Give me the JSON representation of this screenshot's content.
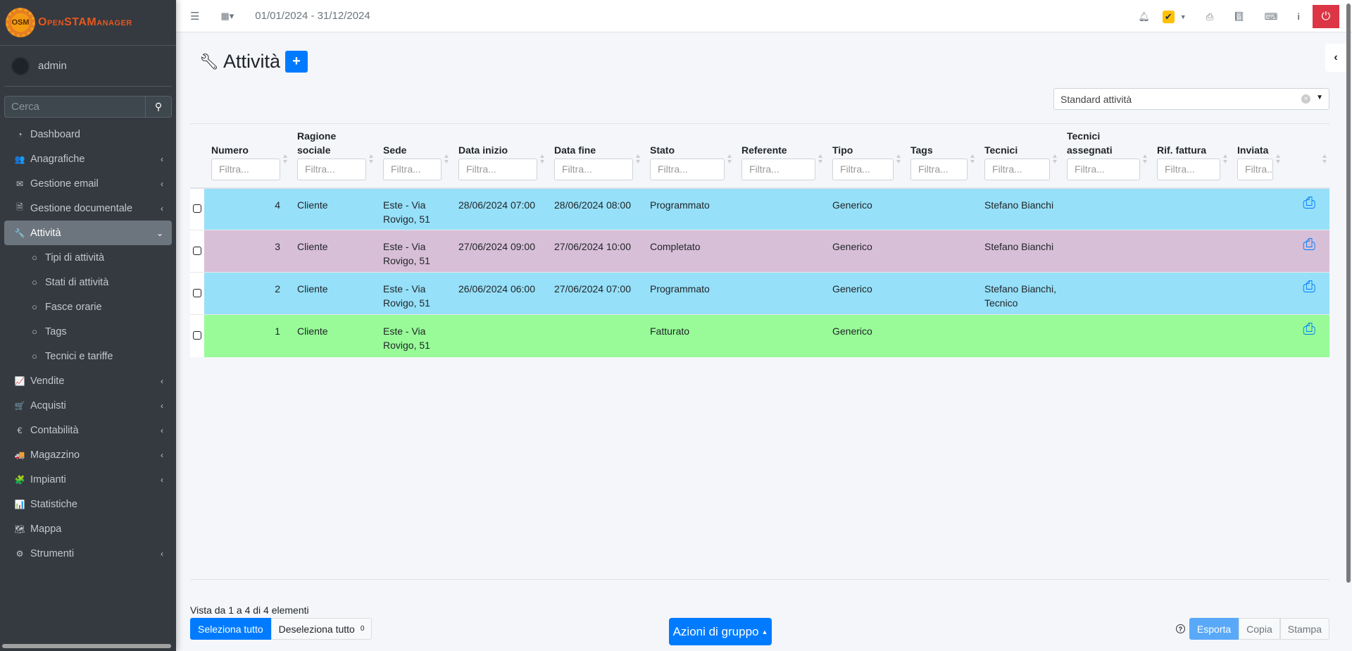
{
  "brand": {
    "logo_text": "OpenSTAManager",
    "logo_badge": "OSM"
  },
  "user": {
    "name": "admin"
  },
  "search": {
    "placeholder": "Cerca"
  },
  "menu": [
    {
      "label": "Dashboard",
      "icon": "dashboard-icon",
      "glyph": "◔",
      "chev": ""
    },
    {
      "label": "Anagrafiche",
      "icon": "users-icon",
      "glyph": "👥",
      "chev": "‹"
    },
    {
      "label": "Gestione email",
      "icon": "envelope-icon",
      "glyph": "✉",
      "chev": "‹"
    },
    {
      "label": "Gestione documentale",
      "icon": "file-icon",
      "glyph": "🗎",
      "chev": "‹"
    },
    {
      "label": "Attività",
      "icon": "wrench-icon",
      "glyph": "🔧",
      "chev": "⌄",
      "active": true
    },
    {
      "label": "Tipi di attività",
      "icon": "circle-icon",
      "glyph": "○",
      "sub": true
    },
    {
      "label": "Stati di attività",
      "icon": "circle-icon",
      "glyph": "○",
      "sub": true
    },
    {
      "label": "Fasce orarie",
      "icon": "circle-icon",
      "glyph": "○",
      "sub": true
    },
    {
      "label": "Tags",
      "icon": "circle-icon",
      "glyph": "○",
      "sub": true
    },
    {
      "label": "Tecnici e tariffe",
      "icon": "circle-icon",
      "glyph": "○",
      "sub": true
    },
    {
      "label": "Vendite",
      "icon": "chart-line-icon",
      "glyph": "📈",
      "chev": "‹"
    },
    {
      "label": "Acquisti",
      "icon": "cart-icon",
      "glyph": "🛒",
      "chev": "‹"
    },
    {
      "label": "Contabilità",
      "icon": "euro-icon",
      "glyph": "€",
      "chev": "‹"
    },
    {
      "label": "Magazzino",
      "icon": "truck-icon",
      "glyph": "🚚",
      "chev": "‹"
    },
    {
      "label": "Impianti",
      "icon": "puzzle-icon",
      "glyph": "🧩",
      "chev": "‹"
    },
    {
      "label": "Statistiche",
      "icon": "bar-chart-icon",
      "glyph": "📊",
      "chev": ""
    },
    {
      "label": "Mappa",
      "icon": "map-icon",
      "glyph": "🗺",
      "chev": ""
    },
    {
      "label": "Strumenti",
      "icon": "cog-icon",
      "glyph": "⚙",
      "chev": "‹"
    }
  ],
  "topbar": {
    "date_range": "01/01/2024 - 31/12/2024"
  },
  "page": {
    "title": "Attività",
    "add_label": "+"
  },
  "view_select": {
    "value": "Standard attività"
  },
  "table": {
    "filter_placeholder": "Filtra...",
    "columns": [
      "Numero",
      "Ragione sociale",
      "Sede",
      "Data inizio",
      "Data fine",
      "Stato",
      "Referente",
      "Tipo",
      "Tags",
      "Tecnici",
      "Tecnici assegnati",
      "Rif. fattura",
      "Inviata",
      ""
    ],
    "rows": [
      {
        "color": "#96e0f9",
        "cells": [
          "4",
          "Cliente",
          "Este - Via Rovigo, 51",
          "28/06/2024 07:00",
          "28/06/2024 08:00",
          "Programmato",
          "",
          "Generico",
          "",
          "Stefano Bianchi",
          "",
          "",
          ""
        ]
      },
      {
        "color": "#d8bfd8",
        "cells": [
          "3",
          "Cliente",
          "Este - Via Rovigo, 51",
          "27/06/2024 09:00",
          "27/06/2024 10:00",
          "Completato",
          "",
          "Generico",
          "",
          "Stefano Bianchi",
          "",
          "",
          ""
        ]
      },
      {
        "color": "#96e0f9",
        "cells": [
          "2",
          "Cliente",
          "Este - Via Rovigo, 51",
          "26/06/2024 06:00",
          "27/06/2024 07:00",
          "Programmato",
          "",
          "Generico",
          "",
          "Stefano Bianchi, Tecnico",
          "",
          "",
          ""
        ]
      },
      {
        "color": "#98fb98",
        "cells": [
          "1",
          "Cliente",
          "Este - Via Rovigo, 51",
          "",
          "",
          "Fatturato",
          "",
          "Generico",
          "",
          "",
          "",
          "",
          ""
        ]
      }
    ]
  },
  "footer": {
    "info": "Vista da 1 a 4 di 4 elementi",
    "select_all": "Seleziona tutto",
    "deselect_all": "Deseleziona tutto",
    "selected_count": "0",
    "bulk_actions": "Azioni di gruppo",
    "export": "Esporta",
    "copy": "Copia",
    "print": "Stampa"
  }
}
